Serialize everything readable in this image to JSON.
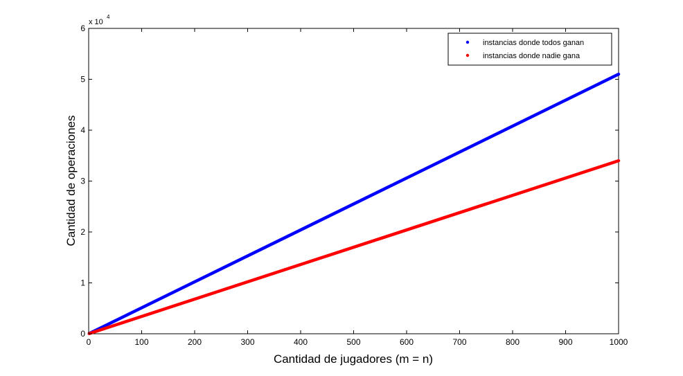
{
  "chart_data": {
    "type": "scatter",
    "title": "",
    "xlabel": "Cantidad de jugadores (m = n)",
    "ylabel": "Cantidad de operaciones",
    "xlim": [
      0,
      1000
    ],
    "ylim": [
      0,
      60000
    ],
    "x_ticks": [
      0,
      100,
      200,
      300,
      400,
      500,
      600,
      700,
      800,
      900,
      1000
    ],
    "x_tick_labels": [
      "0",
      "100",
      "200",
      "300",
      "400",
      "500",
      "600",
      "700",
      "800",
      "900",
      "1000"
    ],
    "y_ticks": [
      0,
      10000,
      20000,
      30000,
      40000,
      50000,
      60000
    ],
    "y_tick_labels": [
      "0",
      "1",
      "2",
      "3",
      "4",
      "5",
      "6"
    ],
    "y_exponent": {
      "base": "x 10",
      "power": "4"
    },
    "grid": false,
    "legend_position": "top-right",
    "series": [
      {
        "name": "instancias donde todos ganan",
        "color": "#0000ff",
        "marker": "dot",
        "x_range": [
          1,
          1000
        ],
        "formula": "y = 51 * x",
        "x_sample": [
          0,
          100,
          200,
          300,
          400,
          500,
          600,
          700,
          800,
          900,
          1000
        ],
        "y_sample": [
          0,
          5100,
          10200,
          15300,
          20400,
          25500,
          30600,
          35700,
          40800,
          45900,
          51000
        ]
      },
      {
        "name": "instancias donde nadie gana",
        "color": "#ff0000",
        "marker": "dot",
        "x_range": [
          1,
          1000
        ],
        "formula": "y = 34 * x",
        "x_sample": [
          0,
          100,
          200,
          300,
          400,
          500,
          600,
          700,
          800,
          900,
          1000
        ],
        "y_sample": [
          0,
          3400,
          6800,
          10200,
          13600,
          17000,
          20400,
          23800,
          27200,
          30600,
          34000
        ]
      }
    ]
  }
}
